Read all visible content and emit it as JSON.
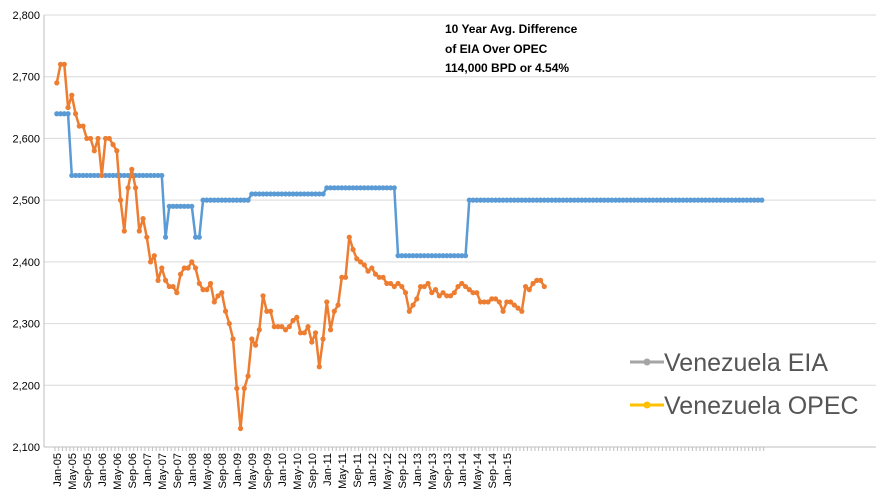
{
  "chart_data": {
    "type": "line",
    "title": "",
    "xlabel": "",
    "ylabel": "",
    "ylim": [
      2100,
      2800
    ],
    "y_ticks": [
      "2,100",
      "2,200",
      "2,300",
      "2,400",
      "2,500",
      "2,600",
      "2,700",
      "2,800"
    ],
    "y_tick_values": [
      2100,
      2200,
      2300,
      2400,
      2500,
      2600,
      2700,
      2800
    ],
    "x_tick_labels": [
      "Jan-05",
      "May-05",
      "Sep-05",
      "Jan-06",
      "May-06",
      "Sep-06",
      "Jan-07",
      "May-07",
      "Sep-07",
      "Jan-08",
      "May-08",
      "Sep-08",
      "Jan-09",
      "May-09",
      "Sep-09",
      "Jan-10",
      "May-10",
      "Sep-10",
      "Jan-11",
      "May-11",
      "Sep-11",
      "Jan-12",
      "May-12",
      "Sep-12",
      "Jan-13",
      "May-13",
      "Sep-13",
      "Jan-14",
      "May-14",
      "Sep-14",
      "Jan-15"
    ],
    "x_start": "2005-01",
    "gridlines": "horizontal",
    "legend_placement": "bottom-right",
    "annotation": [
      "10 Year Avg. Difference",
      "of EIA Over OPEC",
      "114,000 BPD or 4.54%"
    ],
    "series": [
      {
        "name": "Venezuela EIA",
        "color": "#5b9bd5",
        "values": [
          2640,
          2640,
          2640,
          2640,
          2540,
          2540,
          2540,
          2540,
          2540,
          2540,
          2540,
          2540,
          2540,
          2540,
          2540,
          2540,
          2540,
          2540,
          2540,
          2540,
          2540,
          2540,
          2540,
          2540,
          2540,
          2540,
          2540,
          2540,
          2540,
          2440,
          2490,
          2490,
          2490,
          2490,
          2490,
          2490,
          2490,
          2440,
          2440,
          2500,
          2500,
          2500,
          2500,
          2500,
          2500,
          2500,
          2500,
          2500,
          2500,
          2500,
          2500,
          2500,
          2510,
          2510,
          2510,
          2510,
          2510,
          2510,
          2510,
          2510,
          2510,
          2510,
          2510,
          2510,
          2510,
          2510,
          2510,
          2510,
          2510,
          2510,
          2510,
          2510,
          2520,
          2520,
          2520,
          2520,
          2520,
          2520,
          2520,
          2520,
          2520,
          2520,
          2520,
          2520,
          2520,
          2520,
          2520,
          2520,
          2520,
          2520,
          2520,
          2410,
          2410,
          2410,
          2410,
          2410,
          2410,
          2410,
          2410,
          2410,
          2410,
          2410,
          2410,
          2410,
          2410,
          2410,
          2410,
          2410,
          2410,
          2410,
          2500,
          2500,
          2500,
          2500,
          2500,
          2500,
          2500,
          2500,
          2500,
          2500,
          2500,
          2500,
          2500,
          2500,
          2500,
          2500,
          2500,
          2500,
          2500,
          2500,
          2500,
          2500,
          2500,
          2500,
          2500,
          2500,
          2500,
          2500,
          2500,
          2500,
          2500,
          2500,
          2500,
          2500,
          2500,
          2500,
          2500,
          2500,
          2500,
          2500,
          2500,
          2500,
          2500,
          2500,
          2500,
          2500,
          2500,
          2500,
          2500,
          2500,
          2500,
          2500,
          2500,
          2500,
          2500,
          2500,
          2500,
          2500,
          2500,
          2500,
          2500,
          2500,
          2500,
          2500,
          2500,
          2500,
          2500,
          2500,
          2500,
          2500,
          2500,
          2500,
          2500,
          2500,
          2500,
          2500,
          2500,
          2500,
          2500
        ]
      },
      {
        "name": "Venezuela OPEC",
        "color": "#ed7d31",
        "values": [
          2690,
          2720,
          2720,
          2650,
          2670,
          2640,
          2620,
          2620,
          2600,
          2600,
          2580,
          2600,
          2540,
          2600,
          2600,
          2590,
          2580,
          2500,
          2450,
          2520,
          2550,
          2520,
          2450,
          2470,
          2440,
          2400,
          2410,
          2370,
          2390,
          2370,
          2360,
          2360,
          2350,
          2380,
          2390,
          2390,
          2400,
          2390,
          2365,
          2355,
          2355,
          2365,
          2335,
          2345,
          2350,
          2320,
          2300,
          2275,
          2195,
          2130,
          2195,
          2215,
          2275,
          2265,
          2290,
          2345,
          2320,
          2320,
          2295,
          2295,
          2295,
          2290,
          2295,
          2305,
          2310,
          2285,
          2285,
          2295,
          2270,
          2285,
          2230,
          2275,
          2335,
          2290,
          2320,
          2330,
          2375,
          2375,
          2440,
          2420,
          2405,
          2400,
          2395,
          2385,
          2390,
          2380,
          2375,
          2375,
          2365,
          2365,
          2360,
          2365,
          2360,
          2350,
          2320,
          2330,
          2340,
          2360,
          2360,
          2365,
          2350,
          2355,
          2345,
          2350,
          2345,
          2345,
          2350,
          2360,
          2365,
          2360,
          2355,
          2350,
          2350,
          2335,
          2335,
          2335,
          2340,
          2340,
          2335,
          2320,
          2335,
          2335,
          2330,
          2325,
          2320,
          2360,
          2355,
          2365,
          2370,
          2370,
          2360
        ]
      }
    ]
  }
}
